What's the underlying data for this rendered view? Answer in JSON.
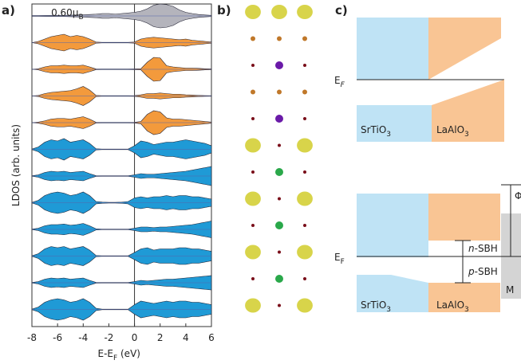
{
  "chart_data": {
    "type": "area",
    "panel_label": "a)",
    "ylabel": "LDOS (arb. units)",
    "xlabel": {
      "text": "E-E",
      "sub": "F",
      "after": " (eV)"
    },
    "annotation": {
      "text": "0.60μ",
      "sub": "B"
    },
    "xlim": [
      -8,
      6
    ],
    "xticks": [
      -8,
      -6,
      -4,
      -2,
      0,
      2,
      4,
      6
    ],
    "ylim": [
      0,
      1
    ],
    "x": [
      -8,
      -7.5,
      -7,
      -6.5,
      -6,
      -5.5,
      -5,
      -4.5,
      -4,
      -3.5,
      -3,
      -2.5,
      -2,
      -1.5,
      -1,
      -0.5,
      0,
      0.5,
      1,
      1.5,
      2,
      2.5,
      3,
      3.5,
      4,
      4.5,
      5,
      5.5,
      6
    ],
    "series": [
      {
        "color": "#b4b4bc",
        "values": [
          0.03,
          0.03,
          0.04,
          0.05,
          0.05,
          0.05,
          0.06,
          0.08,
          0.1,
          0.12,
          0.15,
          0.2,
          0.2,
          0.15,
          0.2,
          0.25,
          0.3,
          0.4,
          0.6,
          0.9,
          1,
          0.95,
          0.8,
          0.5,
          0.3,
          0.2,
          0.12,
          0.08,
          0.05
        ]
      },
      {
        "color": "#f39a3c",
        "values": [
          0,
          0.1,
          0.3,
          0.5,
          0.6,
          0.7,
          0.5,
          0.6,
          0.5,
          0.3,
          0.05,
          0.02,
          0.02,
          0.02,
          0.02,
          0.02,
          0.05,
          0.3,
          0.4,
          0.45,
          0.4,
          0.35,
          0.3,
          0.25,
          0.3,
          0.2,
          0.15,
          0.1,
          0.05
        ]
      },
      {
        "color": "#f39a3c",
        "values": [
          0,
          0.05,
          0.2,
          0.3,
          0.3,
          0.35,
          0.3,
          0.3,
          0.35,
          0.2,
          0.03,
          0.02,
          0.02,
          0.02,
          0.02,
          0.02,
          0.03,
          0.05,
          0.6,
          1,
          0.95,
          0.3,
          0.2,
          0.15,
          0.1,
          0.1,
          0.08,
          0.05,
          0.03
        ]
      },
      {
        "color": "#f39a3c",
        "values": [
          0,
          0.05,
          0.2,
          0.3,
          0.35,
          0.4,
          0.45,
          0.6,
          0.8,
          0.5,
          0.05,
          0.02,
          0.02,
          0.02,
          0.02,
          0.02,
          0.03,
          0.1,
          0.2,
          0.2,
          0.25,
          0.2,
          0.15,
          0.15,
          0.1,
          0.08,
          0.05,
          0.03,
          0.02
        ]
      },
      {
        "color": "#f39a3c",
        "values": [
          0,
          0.05,
          0.15,
          0.3,
          0.35,
          0.35,
          0.3,
          0.4,
          0.5,
          0.3,
          0.03,
          0.02,
          0.02,
          0.02,
          0.02,
          0.02,
          0.03,
          0.1,
          0.7,
          1,
          0.9,
          0.4,
          0.3,
          0.3,
          0.25,
          0.2,
          0.15,
          0.1,
          0.05
        ]
      },
      {
        "color": "#1f9ad6",
        "values": [
          0.02,
          0.2,
          0.6,
          0.8,
          0.7,
          0.9,
          0.6,
          0.7,
          0.8,
          0.5,
          0.05,
          0.02,
          0.02,
          0.02,
          0.02,
          0.02,
          0.3,
          0.7,
          0.6,
          0.4,
          0.5,
          0.6,
          0.6,
          0.7,
          0.8,
          0.7,
          0.6,
          0.5,
          0.3
        ]
      },
      {
        "color": "#1f9ad6",
        "values": [
          0.02,
          0.1,
          0.3,
          0.4,
          0.35,
          0.4,
          0.3,
          0.35,
          0.4,
          0.2,
          0.03,
          0.02,
          0.02,
          0.02,
          0.02,
          0.02,
          0.1,
          0.2,
          0.15,
          0.15,
          0.2,
          0.25,
          0.3,
          0.35,
          0.4,
          0.5,
          0.6,
          0.7,
          0.8
        ]
      },
      {
        "color": "#1f9ad6",
        "values": [
          0.02,
          0.2,
          0.6,
          0.8,
          0.9,
          0.8,
          0.6,
          0.7,
          0.9,
          0.6,
          0.1,
          0.05,
          0.03,
          0.03,
          0.05,
          0.1,
          0.4,
          0.5,
          0.4,
          0.5,
          0.5,
          0.6,
          0.5,
          0.6,
          0.6,
          0.5,
          0.5,
          0.4,
          0.3
        ]
      },
      {
        "color": "#1f9ad6",
        "values": [
          0.02,
          0.1,
          0.3,
          0.4,
          0.4,
          0.45,
          0.35,
          0.4,
          0.5,
          0.3,
          0.05,
          0.02,
          0.02,
          0.02,
          0.02,
          0.02,
          0.1,
          0.2,
          0.2,
          0.15,
          0.2,
          0.2,
          0.25,
          0.3,
          0.35,
          0.4,
          0.5,
          0.6,
          0.7
        ]
      },
      {
        "color": "#1f9ad6",
        "values": [
          0.02,
          0.2,
          0.6,
          0.8,
          0.7,
          0.8,
          0.6,
          0.7,
          0.8,
          0.5,
          0.05,
          0.02,
          0.02,
          0.02,
          0.02,
          0.02,
          0.3,
          0.6,
          0.7,
          0.5,
          0.6,
          0.6,
          0.6,
          0.7,
          0.7,
          0.6,
          0.6,
          0.5,
          0.4
        ]
      },
      {
        "color": "#1f9ad6",
        "values": [
          0.02,
          0.1,
          0.3,
          0.4,
          0.35,
          0.4,
          0.3,
          0.35,
          0.4,
          0.2,
          0.03,
          0.02,
          0.02,
          0.02,
          0.02,
          0.02,
          0.1,
          0.2,
          0.15,
          0.2,
          0.25,
          0.3,
          0.3,
          0.35,
          0.4,
          0.45,
          0.5,
          0.55,
          0.6
        ]
      },
      {
        "color": "#1f9ad6",
        "values": [
          0.02,
          0.2,
          0.6,
          0.8,
          0.9,
          0.8,
          0.6,
          0.7,
          0.9,
          0.6,
          0.1,
          0.02,
          0.02,
          0.02,
          0.02,
          0.02,
          0.4,
          0.7,
          0.6,
          0.5,
          0.6,
          0.7,
          0.6,
          0.7,
          0.7,
          0.6,
          0.6,
          0.5,
          0.4
        ]
      }
    ]
  },
  "orbitals": {
    "panel_label": "b)"
  },
  "diagram": {
    "panel_label": "c)",
    "top": {
      "ef": {
        "text": "E",
        "sub": "F"
      },
      "left": {
        "text": "SrTiO",
        "sub": "3"
      },
      "right": {
        "text": "LaAlO",
        "sub": "3"
      }
    },
    "bottom": {
      "ef": {
        "text": "E",
        "sub": "F"
      },
      "left": {
        "text": "SrTiO",
        "sub": "3"
      },
      "right": {
        "text": "LaAlO",
        "sub": "3"
      },
      "n_sbh": {
        "text": "n",
        "after": "-SBH"
      },
      "p_sbh": {
        "text": "p",
        "after": "-SBH"
      },
      "metal": "M",
      "phi": "Φ"
    }
  }
}
